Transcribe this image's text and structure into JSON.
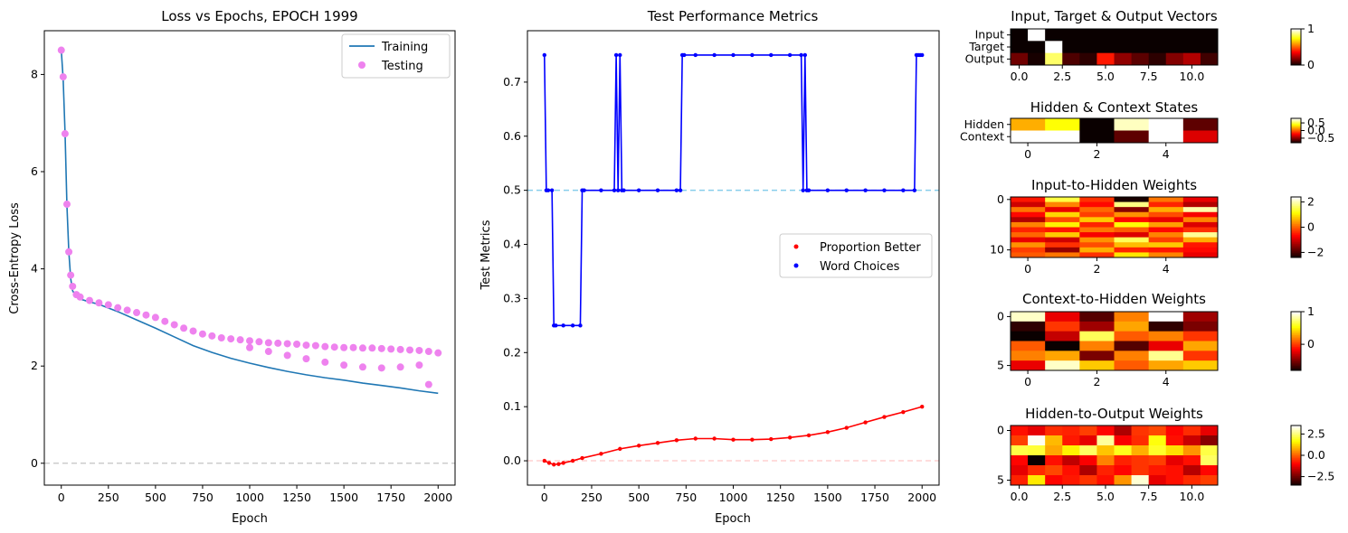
{
  "chart_data": [
    {
      "type": "line",
      "title": "Loss vs Epochs, EPOCH 1999",
      "xlabel": "Epoch",
      "ylabel": "Cross-Entropy Loss",
      "xlim": [
        -90,
        2090
      ],
      "ylim": [
        -0.45,
        8.9
      ],
      "xticks": [
        0,
        250,
        500,
        750,
        1000,
        1250,
        1500,
        1750,
        2000
      ],
      "yticks": [
        0,
        2,
        4,
        6,
        8
      ],
      "legend_position": "top-right",
      "reference_line_y": 0,
      "series": [
        {
          "name": "Training",
          "kind": "line",
          "color": "#1f77b4",
          "x": [
            0,
            10,
            20,
            30,
            40,
            50,
            60,
            80,
            100,
            150,
            200,
            300,
            400,
            500,
            600,
            700,
            800,
            900,
            1000,
            1100,
            1200,
            1300,
            1400,
            1500,
            1600,
            1700,
            1800,
            1900,
            2000
          ],
          "y": [
            8.5,
            7.9,
            6.8,
            5.3,
            4.35,
            3.8,
            3.55,
            3.43,
            3.38,
            3.32,
            3.27,
            3.12,
            2.95,
            2.78,
            2.6,
            2.42,
            2.28,
            2.16,
            2.06,
            1.97,
            1.89,
            1.82,
            1.76,
            1.71,
            1.65,
            1.6,
            1.55,
            1.49,
            1.44
          ]
        },
        {
          "name": "Testing",
          "kind": "scatter",
          "color": "#ee82ee",
          "x": [
            0,
            10,
            20,
            30,
            40,
            50,
            60,
            80,
            100,
            150,
            200,
            250,
            300,
            350,
            400,
            450,
            500,
            550,
            600,
            650,
            700,
            750,
            800,
            850,
            900,
            950,
            1000,
            1050,
            1100,
            1150,
            1200,
            1250,
            1300,
            1350,
            1400,
            1450,
            1500,
            1550,
            1600,
            1650,
            1700,
            1750,
            1800,
            1850,
            1900,
            1950,
            2000,
            1000,
            1100,
            1200,
            1300,
            1400,
            1500,
            1600,
            1700,
            1800,
            1900,
            1950
          ],
          "y": [
            8.5,
            7.95,
            6.78,
            5.33,
            4.35,
            3.87,
            3.64,
            3.47,
            3.42,
            3.35,
            3.3,
            3.26,
            3.2,
            3.15,
            3.1,
            3.05,
            3.0,
            2.92,
            2.85,
            2.78,
            2.72,
            2.66,
            2.62,
            2.58,
            2.56,
            2.54,
            2.52,
            2.5,
            2.48,
            2.47,
            2.46,
            2.45,
            2.43,
            2.42,
            2.4,
            2.39,
            2.38,
            2.38,
            2.37,
            2.37,
            2.36,
            2.35,
            2.34,
            2.33,
            2.32,
            2.3,
            2.27,
            2.38,
            2.3,
            2.22,
            2.15,
            2.08,
            2.02,
            1.98,
            1.96,
            1.98,
            2.02,
            1.62
          ]
        }
      ]
    },
    {
      "type": "line",
      "title": "Test Performance Metrics",
      "xlabel": "Epoch",
      "ylabel": "Test Metrics",
      "xlim": [
        -90,
        2090
      ],
      "ylim": [
        -0.045,
        0.795
      ],
      "xticks": [
        0,
        250,
        500,
        750,
        1000,
        1250,
        1500,
        1750,
        2000
      ],
      "yticks": [
        0.0,
        0.1,
        0.2,
        0.3,
        0.4,
        0.5,
        0.6,
        0.7
      ],
      "legend_position": "center-right",
      "reference_lines_y": [
        0.5,
        0.0
      ],
      "series": [
        {
          "name": "Proportion Better",
          "color": "#ff0000",
          "x": [
            0,
            25,
            50,
            75,
            100,
            150,
            200,
            300,
            400,
            500,
            600,
            700,
            800,
            900,
            1000,
            1100,
            1200,
            1300,
            1400,
            1500,
            1600,
            1700,
            1800,
            1900,
            2000
          ],
          "y": [
            0.0,
            -0.004,
            -0.007,
            -0.006,
            -0.004,
            0.0,
            0.005,
            0.013,
            0.022,
            0.028,
            0.033,
            0.038,
            0.041,
            0.041,
            0.039,
            0.039,
            0.04,
            0.043,
            0.047,
            0.053,
            0.061,
            0.071,
            0.081,
            0.09,
            0.1
          ]
        },
        {
          "name": "Word Choices",
          "color": "#0000ff",
          "x": [
            0,
            10,
            20,
            40,
            50,
            60,
            100,
            150,
            190,
            200,
            210,
            300,
            370,
            380,
            390,
            400,
            410,
            420,
            500,
            600,
            700,
            720,
            730,
            740,
            800,
            900,
            1000,
            1100,
            1200,
            1300,
            1360,
            1370,
            1380,
            1390,
            1400,
            1500,
            1600,
            1700,
            1800,
            1900,
            1960,
            1970,
            1980,
            1990,
            2000
          ],
          "y": [
            0.75,
            0.5,
            0.5,
            0.5,
            0.25,
            0.25,
            0.25,
            0.25,
            0.25,
            0.5,
            0.5,
            0.5,
            0.5,
            0.75,
            0.5,
            0.75,
            0.5,
            0.5,
            0.5,
            0.5,
            0.5,
            0.5,
            0.75,
            0.75,
            0.75,
            0.75,
            0.75,
            0.75,
            0.75,
            0.75,
            0.75,
            0.5,
            0.75,
            0.5,
            0.5,
            0.5,
            0.5,
            0.5,
            0.5,
            0.5,
            0.5,
            0.75,
            0.75,
            0.75,
            0.75
          ]
        }
      ]
    },
    {
      "type": "heatmap",
      "title": "Input, Target & Output Vectors",
      "ytick_labels": [
        "Input",
        "Target",
        "Output"
      ],
      "xticks": [
        "0.0",
        "2.5",
        "5.0",
        "7.5",
        "10.0"
      ],
      "colorbar_ticks": [
        "0",
        "1"
      ],
      "vmin": 0,
      "vmax": 1,
      "values": [
        [
          0,
          1,
          0,
          0,
          0,
          0,
          0,
          0,
          0,
          0,
          0,
          0
        ],
        [
          0,
          0,
          1,
          0,
          0,
          0,
          0,
          0,
          0,
          0,
          0,
          0
        ],
        [
          0.15,
          0.02,
          0.85,
          0.1,
          0.05,
          0.4,
          0.2,
          0.12,
          0.05,
          0.18,
          0.25,
          0.08
        ]
      ]
    },
    {
      "type": "heatmap",
      "title": "Hidden & Context States",
      "ytick_labels": [
        "Hidden",
        "Context"
      ],
      "xticks": [
        "0",
        "2",
        "4"
      ],
      "colorbar_ticks": [
        "0.5",
        "0.0",
        "−0.5"
      ],
      "vmin": -0.8,
      "vmax": 0.8,
      "values": [
        [
          0.2,
          0.4,
          -0.8,
          0.7,
          0.9,
          -0.6
        ],
        [
          0.9,
          0.9,
          -0.8,
          -0.6,
          0.9,
          -0.3
        ]
      ]
    },
    {
      "type": "heatmap",
      "title": "Input-to-Hidden Weights",
      "xticks": [
        "0",
        "2",
        "4"
      ],
      "yticks": [
        "0",
        "10"
      ],
      "colorbar_ticks": [
        "2",
        "0",
        "−2"
      ],
      "vmin": -2.4,
      "vmax": 2.4,
      "values": [
        [
          -0.5,
          1.5,
          -0.3,
          -2.3,
          0.2,
          -0.8
        ],
        [
          -1.0,
          0.3,
          -0.6,
          1.8,
          -0.4,
          -1.2
        ],
        [
          0.2,
          -0.8,
          0.1,
          -1.5,
          0.6,
          2.0
        ],
        [
          -0.6,
          0.9,
          -0.2,
          0.4,
          -0.1,
          -0.7
        ],
        [
          -1.2,
          -0.1,
          0.8,
          -0.6,
          -0.8,
          0.3
        ],
        [
          0.3,
          1.1,
          -0.4,
          1.2,
          0.5,
          -0.9
        ],
        [
          -0.4,
          -0.5,
          0.2,
          0.0,
          -0.6,
          -0.3
        ],
        [
          0.1,
          0.8,
          -0.7,
          -0.9,
          0.3,
          1.9
        ],
        [
          -0.8,
          -1.0,
          0.4,
          1.6,
          -0.2,
          0.6
        ],
        [
          0.4,
          -0.3,
          -0.1,
          0.7,
          0.8,
          -0.5
        ],
        [
          -0.2,
          -1.4,
          0.6,
          -0.4,
          -0.5,
          -0.6
        ],
        [
          0.0,
          0.2,
          -0.3,
          1.0,
          0.3,
          -0.8
        ]
      ]
    },
    {
      "type": "heatmap",
      "title": "Context-to-Hidden Weights",
      "xticks": [
        "0",
        "2",
        "4"
      ],
      "yticks": [
        "0",
        "5"
      ],
      "colorbar_ticks": [
        "1",
        "0"
      ],
      "vmin": -0.8,
      "vmax": 1.0,
      "values": [
        [
          0.9,
          -0.2,
          -0.6,
          0.2,
          1.0,
          -0.4
        ],
        [
          -0.7,
          0.0,
          -0.4,
          0.3,
          -0.7,
          -0.5
        ],
        [
          -0.8,
          -0.3,
          0.7,
          0.1,
          0.2,
          0.0
        ],
        [
          0.1,
          -0.8,
          0.2,
          -0.6,
          -0.2,
          0.3
        ],
        [
          0.2,
          0.3,
          -0.5,
          0.2,
          0.8,
          0.0
        ],
        [
          -0.2,
          0.9,
          0.4,
          0.1,
          0.3,
          0.4
        ]
      ]
    },
    {
      "type": "heatmap",
      "title": "Hidden-to-Output Weights",
      "xticks": [
        "0.0",
        "2.5",
        "5.0",
        "7.5",
        "10.0"
      ],
      "yticks": [
        "0",
        "5"
      ],
      "colorbar_ticks": [
        "2.5",
        "0.0",
        "−2.5"
      ],
      "vmin": -3.5,
      "vmax": 3.5,
      "values": [
        [
          -0.8,
          -1.2,
          -0.5,
          -0.6,
          -0.3,
          -0.9,
          -1.8,
          -0.4,
          -0.2,
          -0.9,
          -0.5,
          -1.2
        ],
        [
          -0.3,
          3.4,
          1.0,
          -0.7,
          -1.2,
          2.8,
          -1.0,
          -0.5,
          1.8,
          -0.8,
          -1.5,
          -2.2
        ],
        [
          2.2,
          2.1,
          0.8,
          1.6,
          2.4,
          1.1,
          1.9,
          0.9,
          2.0,
          1.4,
          0.6,
          2.2
        ],
        [
          -0.9,
          -3.5,
          -0.8,
          -1.6,
          -1.0,
          0.4,
          -0.6,
          -0.4,
          -0.3,
          -1.2,
          -0.8,
          2.4
        ],
        [
          -1.2,
          -0.5,
          -0.2,
          -0.8,
          -1.8,
          -0.6,
          -0.9,
          -0.4,
          -0.7,
          -0.8,
          -1.7,
          -0.9
        ],
        [
          -0.6,
          1.5,
          -0.9,
          -0.7,
          -0.4,
          -0.8,
          0.6,
          3.2,
          -1.2,
          -0.8,
          -0.5,
          -0.3
        ]
      ]
    }
  ]
}
